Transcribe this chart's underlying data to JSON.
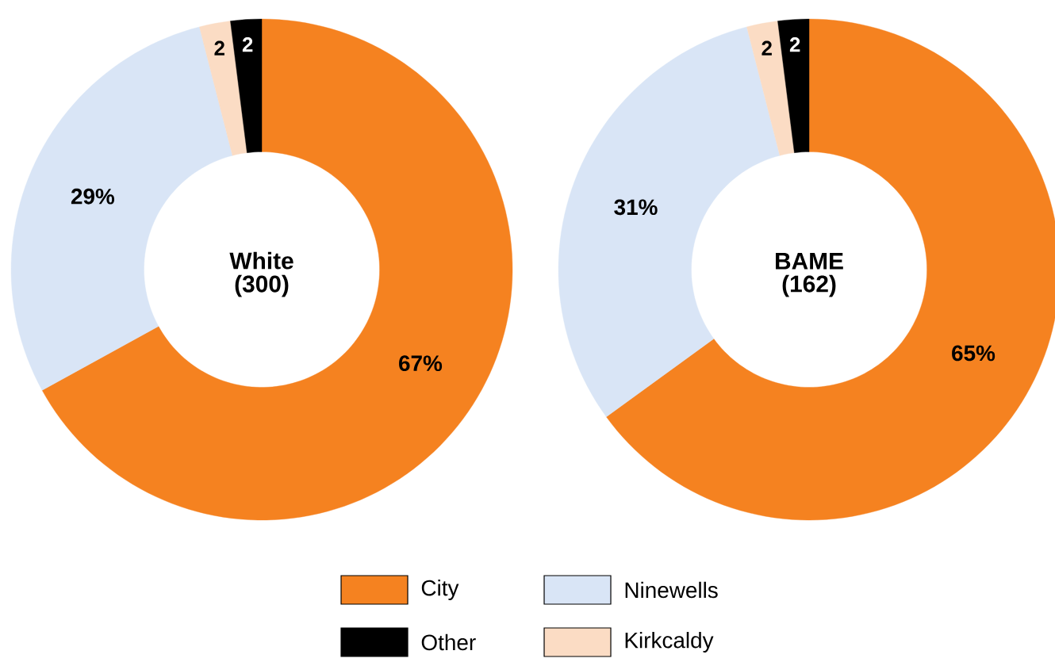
{
  "chart_data": [
    {
      "type": "donut",
      "title": "White",
      "subtitle": "(300)",
      "categories": [
        "City",
        "Ninewells",
        "Kirkcaldy",
        "Other"
      ],
      "values": [
        67,
        29,
        2,
        2
      ],
      "value_labels": [
        "67%",
        "29%",
        "2",
        "2"
      ],
      "colors": [
        "#f58220",
        "#d9e5f6",
        "#fbdcc4",
        "#000000"
      ],
      "legend": "bottom"
    },
    {
      "type": "donut",
      "title": "BAME",
      "subtitle": "(162)",
      "values": [
        65,
        31,
        2,
        2
      ],
      "value_labels": [
        "65%",
        "31%",
        "2",
        "2"
      ],
      "colors": [
        "#f58220",
        "#d9e5f6",
        "#fbdcc4",
        "#000000"
      ]
    }
  ]
}
